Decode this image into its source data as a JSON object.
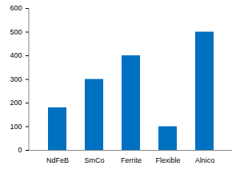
{
  "chart_data": {
    "type": "bar",
    "categories": [
      "NdFeB",
      "SmCo",
      "Ferrite",
      "Flexible",
      "Alnico"
    ],
    "values": [
      180,
      300,
      400,
      100,
      500
    ],
    "color": "#0070c0",
    "ylim": [
      0,
      600
    ],
    "yticks": [
      0,
      100,
      200,
      300,
      400,
      500,
      600
    ],
    "grid": false
  }
}
